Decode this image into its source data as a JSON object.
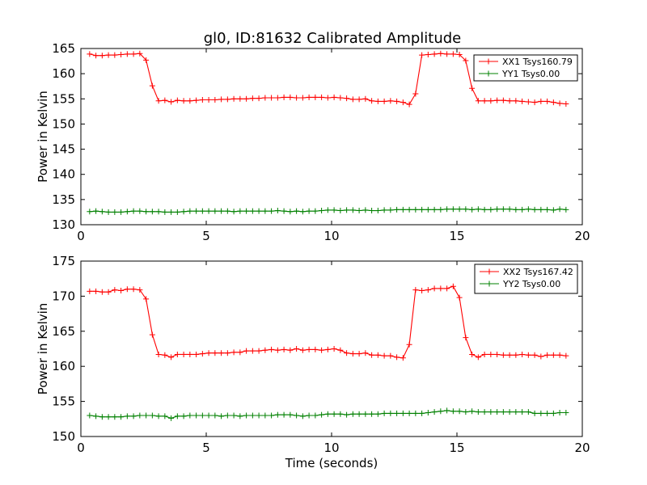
{
  "title": "gl0, ID:81632 Calibrated Amplitude",
  "colors": {
    "xx": "#ff0000",
    "yy": "#008000"
  },
  "chart_data": [
    {
      "type": "line",
      "title": "gl0, ID:81632 Calibrated Amplitude",
      "xlabel": "",
      "ylabel": "Power in Kelvin",
      "xlim": [
        0,
        20
      ],
      "ylim": [
        130,
        165
      ],
      "xticks": [
        0,
        5,
        10,
        15,
        20
      ],
      "yticks": [
        130,
        135,
        140,
        145,
        150,
        155,
        160,
        165
      ],
      "grid": false,
      "legend_position": "top-right",
      "marker": "plus",
      "x": [
        0.35,
        0.6,
        0.85,
        1.1,
        1.35,
        1.6,
        1.85,
        2.1,
        2.35,
        2.6,
        2.85,
        3.1,
        3.35,
        3.6,
        3.85,
        4.1,
        4.35,
        4.6,
        4.85,
        5.1,
        5.35,
        5.6,
        5.85,
        6.1,
        6.35,
        6.6,
        6.85,
        7.1,
        7.35,
        7.6,
        7.85,
        8.1,
        8.35,
        8.6,
        8.85,
        9.1,
        9.35,
        9.6,
        9.85,
        10.1,
        10.35,
        10.6,
        10.85,
        11.1,
        11.35,
        11.6,
        11.85,
        12.1,
        12.35,
        12.6,
        12.85,
        13.1,
        13.35,
        13.6,
        13.85,
        14.1,
        14.35,
        14.6,
        14.85,
        15.1,
        15.35,
        15.6,
        15.85,
        16.1,
        16.35,
        16.6,
        16.85,
        17.1,
        17.35,
        17.6,
        17.85,
        18.1,
        18.35,
        18.6,
        18.85,
        19.1,
        19.35
      ],
      "series": [
        {
          "name": "XX1 Tsys160.79",
          "color": "#ff0000",
          "values": [
            163.9,
            163.6,
            163.6,
            163.7,
            163.7,
            163.8,
            163.9,
            163.9,
            164.0,
            162.7,
            157.6,
            154.6,
            154.7,
            154.4,
            154.7,
            154.6,
            154.6,
            154.7,
            154.8,
            154.8,
            154.8,
            154.9,
            154.9,
            155.0,
            155.0,
            155.0,
            155.1,
            155.1,
            155.2,
            155.2,
            155.2,
            155.3,
            155.3,
            155.2,
            155.2,
            155.3,
            155.3,
            155.3,
            155.2,
            155.3,
            155.2,
            155.1,
            154.9,
            154.9,
            155.0,
            154.6,
            154.5,
            154.5,
            154.6,
            154.5,
            154.3,
            153.9,
            156.0,
            163.7,
            163.8,
            163.9,
            164.0,
            163.9,
            163.9,
            163.8,
            162.6,
            157.1,
            154.6,
            154.6,
            154.6,
            154.7,
            154.7,
            154.6,
            154.6,
            154.5,
            154.4,
            154.3,
            154.5,
            154.5,
            154.3,
            154.1,
            154.0
          ]
        },
        {
          "name": "YY1 Tsys0.00",
          "color": "#008000",
          "values": [
            132.6,
            132.7,
            132.6,
            132.5,
            132.5,
            132.5,
            132.6,
            132.7,
            132.7,
            132.6,
            132.6,
            132.6,
            132.5,
            132.5,
            132.5,
            132.6,
            132.7,
            132.7,
            132.7,
            132.7,
            132.7,
            132.7,
            132.7,
            132.6,
            132.7,
            132.7,
            132.7,
            132.7,
            132.7,
            132.7,
            132.8,
            132.7,
            132.6,
            132.7,
            132.6,
            132.7,
            132.7,
            132.8,
            132.9,
            132.9,
            132.8,
            132.9,
            132.9,
            132.8,
            132.9,
            132.8,
            132.8,
            132.9,
            132.9,
            133.0,
            133.0,
            133.0,
            133.0,
            133.0,
            133.0,
            133.0,
            133.0,
            133.1,
            133.1,
            133.1,
            133.1,
            133.0,
            133.1,
            133.0,
            133.0,
            133.1,
            133.1,
            133.1,
            133.0,
            133.0,
            133.1,
            133.0,
            133.0,
            133.0,
            132.9,
            133.1,
            133.0
          ]
        }
      ]
    },
    {
      "type": "line",
      "title": "",
      "xlabel": "Time (seconds)",
      "ylabel": "Power in Kelvin",
      "xlim": [
        0,
        20
      ],
      "ylim": [
        150,
        175
      ],
      "xticks": [
        0,
        5,
        10,
        15,
        20
      ],
      "yticks": [
        150,
        155,
        160,
        165,
        170,
        175
      ],
      "grid": false,
      "legend_position": "top-right",
      "marker": "plus",
      "x": [
        0.35,
        0.6,
        0.85,
        1.1,
        1.35,
        1.6,
        1.85,
        2.1,
        2.35,
        2.6,
        2.85,
        3.1,
        3.35,
        3.6,
        3.85,
        4.1,
        4.35,
        4.6,
        4.85,
        5.1,
        5.35,
        5.6,
        5.85,
        6.1,
        6.35,
        6.6,
        6.85,
        7.1,
        7.35,
        7.6,
        7.85,
        8.1,
        8.35,
        8.6,
        8.85,
        9.1,
        9.35,
        9.6,
        9.85,
        10.1,
        10.35,
        10.6,
        10.85,
        11.1,
        11.35,
        11.6,
        11.85,
        12.1,
        12.35,
        12.6,
        12.85,
        13.1,
        13.35,
        13.6,
        13.85,
        14.1,
        14.35,
        14.6,
        14.85,
        15.1,
        15.35,
        15.6,
        15.85,
        16.1,
        16.35,
        16.6,
        16.85,
        17.1,
        17.35,
        17.6,
        17.85,
        18.1,
        18.35,
        18.6,
        18.85,
        19.1,
        19.35
      ],
      "series": [
        {
          "name": "XX2 Tsys167.42",
          "color": "#ff0000",
          "values": [
            170.7,
            170.7,
            170.6,
            170.6,
            170.9,
            170.8,
            171.0,
            171.0,
            170.9,
            169.6,
            164.5,
            161.7,
            161.6,
            161.3,
            161.7,
            161.7,
            161.7,
            161.7,
            161.8,
            161.9,
            161.9,
            161.9,
            161.9,
            162.0,
            162.0,
            162.2,
            162.2,
            162.2,
            162.3,
            162.4,
            162.3,
            162.4,
            162.3,
            162.5,
            162.3,
            162.4,
            162.4,
            162.3,
            162.4,
            162.5,
            162.3,
            161.9,
            161.8,
            161.8,
            161.9,
            161.6,
            161.6,
            161.5,
            161.5,
            161.3,
            161.2,
            163.1,
            170.9,
            170.8,
            170.9,
            171.1,
            171.1,
            171.1,
            171.4,
            169.8,
            164.1,
            161.7,
            161.3,
            161.7,
            161.7,
            161.7,
            161.6,
            161.6,
            161.6,
            161.7,
            161.6,
            161.6,
            161.4,
            161.6,
            161.6,
            161.6,
            161.5
          ]
        },
        {
          "name": "YY2 Tsys0.00",
          "color": "#008000",
          "values": [
            153.0,
            152.9,
            152.8,
            152.8,
            152.8,
            152.8,
            152.9,
            152.9,
            153.0,
            153.0,
            153.0,
            152.9,
            152.9,
            152.6,
            152.9,
            152.9,
            153.0,
            153.0,
            153.0,
            153.0,
            153.0,
            152.9,
            153.0,
            153.0,
            152.9,
            153.0,
            153.0,
            153.0,
            153.0,
            153.0,
            153.1,
            153.1,
            153.1,
            153.0,
            152.9,
            153.0,
            153.0,
            153.1,
            153.2,
            153.2,
            153.2,
            153.1,
            153.2,
            153.2,
            153.2,
            153.2,
            153.2,
            153.3,
            153.3,
            153.3,
            153.3,
            153.3,
            153.3,
            153.3,
            153.4,
            153.5,
            153.6,
            153.7,
            153.6,
            153.6,
            153.5,
            153.6,
            153.5,
            153.5,
            153.5,
            153.5,
            153.5,
            153.5,
            153.5,
            153.5,
            153.5,
            153.3,
            153.3,
            153.3,
            153.3,
            153.4,
            153.4
          ]
        }
      ]
    }
  ]
}
